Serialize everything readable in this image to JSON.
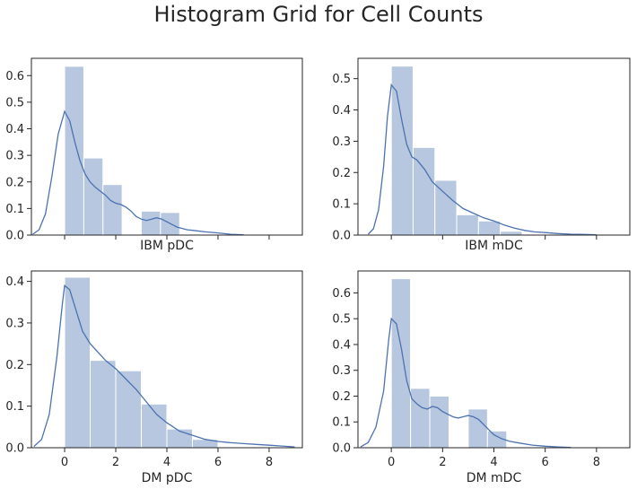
{
  "title": "Histogram Grid for Cell Counts",
  "colors": {
    "bar": "#4c72b0",
    "line": "#4c72b0",
    "axes": "#262626"
  },
  "chart_data": [
    {
      "type": "bar",
      "title": "",
      "xlabel": "IBM pDC",
      "ylabel": "",
      "xlim": [
        -1.3,
        9.3
      ],
      "ylim": [
        0,
        0.665
      ],
      "xticks": [
        0,
        2,
        4,
        6,
        8
      ],
      "xtick_labels_shown": false,
      "yticks": [
        0.0,
        0.1,
        0.2,
        0.3,
        0.4,
        0.5,
        0.6
      ],
      "ytick_labels": [
        "0.0",
        "0.1",
        "0.2",
        "0.3",
        "0.4",
        "0.5",
        "0.6"
      ],
      "bins": [
        {
          "x0": 0.0,
          "x1": 0.75,
          "value": 0.635
        },
        {
          "x0": 0.75,
          "x1": 1.5,
          "value": 0.29
        },
        {
          "x0": 1.5,
          "x1": 2.25,
          "value": 0.19
        },
        {
          "x0": 2.25,
          "x1": 3.0,
          "value": 0.0
        },
        {
          "x0": 3.0,
          "x1": 3.75,
          "value": 0.09
        },
        {
          "x0": 3.75,
          "x1": 4.5,
          "value": 0.085
        }
      ],
      "kde": {
        "x": [
          -1.25,
          -1.0,
          -0.75,
          -0.5,
          -0.25,
          0.0,
          0.2,
          0.4,
          0.6,
          0.8,
          1.0,
          1.2,
          1.4,
          1.6,
          1.8,
          2.0,
          2.2,
          2.4,
          2.6,
          2.8,
          3.0,
          3.2,
          3.4,
          3.6,
          3.8,
          4.0,
          4.2,
          4.4,
          4.6,
          4.8,
          5.0,
          5.5,
          6.0,
          6.5,
          7.0
        ],
        "y": [
          0.003,
          0.02,
          0.08,
          0.22,
          0.38,
          0.465,
          0.43,
          0.35,
          0.28,
          0.23,
          0.2,
          0.18,
          0.165,
          0.15,
          0.13,
          0.12,
          0.115,
          0.105,
          0.09,
          0.07,
          0.06,
          0.055,
          0.06,
          0.065,
          0.06,
          0.05,
          0.04,
          0.03,
          0.025,
          0.02,
          0.018,
          0.012,
          0.008,
          0.003,
          0.001
        ]
      }
    },
    {
      "type": "bar",
      "title": "",
      "xlabel": "IBM mDC",
      "ylabel": "",
      "xlim": [
        -1.3,
        9.3
      ],
      "ylim": [
        0,
        0.565
      ],
      "xticks": [
        0,
        2,
        4,
        6,
        8
      ],
      "xtick_labels_shown": false,
      "yticks": [
        0.0,
        0.1,
        0.2,
        0.3,
        0.4,
        0.5
      ],
      "ytick_labels": [
        "0.0",
        "0.1",
        "0.2",
        "0.3",
        "0.4",
        "0.5"
      ],
      "bins": [
        {
          "x0": 0.0,
          "x1": 0.85,
          "value": 0.54
        },
        {
          "x0": 0.85,
          "x1": 1.7,
          "value": 0.28
        },
        {
          "x0": 1.7,
          "x1": 2.55,
          "value": 0.175
        },
        {
          "x0": 2.55,
          "x1": 3.4,
          "value": 0.065
        },
        {
          "x0": 3.4,
          "x1": 4.25,
          "value": 0.045
        },
        {
          "x0": 4.25,
          "x1": 5.1,
          "value": 0.012
        }
      ],
      "kde": {
        "x": [
          -0.9,
          -0.7,
          -0.5,
          -0.3,
          -0.15,
          0.0,
          0.2,
          0.4,
          0.6,
          0.8,
          1.0,
          1.3,
          1.6,
          2.0,
          2.4,
          2.8,
          3.2,
          3.6,
          4.0,
          4.4,
          4.8,
          5.2,
          5.6,
          6.0,
          6.5,
          7.0,
          7.5,
          8.0
        ],
        "y": [
          0.003,
          0.02,
          0.08,
          0.22,
          0.38,
          0.48,
          0.46,
          0.37,
          0.29,
          0.25,
          0.24,
          0.21,
          0.17,
          0.14,
          0.11,
          0.085,
          0.07,
          0.055,
          0.045,
          0.032,
          0.022,
          0.015,
          0.01,
          0.008,
          0.005,
          0.003,
          0.002,
          0.001
        ]
      }
    },
    {
      "type": "bar",
      "title": "",
      "xlabel": "DM pDC",
      "ylabel": "",
      "xlim": [
        -1.3,
        9.3
      ],
      "ylim": [
        0,
        0.425
      ],
      "xticks": [
        0,
        2,
        4,
        6,
        8
      ],
      "xtick_labels": [
        "0",
        "2",
        "4",
        "6",
        "8"
      ],
      "xtick_labels_shown": true,
      "yticks": [
        0.0,
        0.1,
        0.2,
        0.3,
        0.4
      ],
      "ytick_labels": [
        "0.0",
        "0.1",
        "0.2",
        "0.3",
        "0.4"
      ],
      "bins": [
        {
          "x0": 0.0,
          "x1": 1.0,
          "value": 0.41
        },
        {
          "x0": 1.0,
          "x1": 2.0,
          "value": 0.21
        },
        {
          "x0": 2.0,
          "x1": 3.0,
          "value": 0.185
        },
        {
          "x0": 3.0,
          "x1": 4.0,
          "value": 0.105
        },
        {
          "x0": 4.0,
          "x1": 5.0,
          "value": 0.045
        },
        {
          "x0": 5.0,
          "x1": 6.0,
          "value": 0.02
        }
      ],
      "kde": {
        "x": [
          -1.2,
          -0.9,
          -0.6,
          -0.3,
          -0.1,
          0.0,
          0.2,
          0.4,
          0.7,
          1.0,
          1.3,
          1.6,
          2.0,
          2.4,
          2.8,
          3.2,
          3.6,
          4.0,
          4.5,
          5.0,
          5.5,
          6.0,
          6.5,
          7.0,
          7.5,
          8.0,
          8.5,
          9.0
        ],
        "y": [
          0.003,
          0.02,
          0.08,
          0.22,
          0.34,
          0.39,
          0.38,
          0.34,
          0.28,
          0.25,
          0.23,
          0.21,
          0.19,
          0.165,
          0.14,
          0.11,
          0.08,
          0.06,
          0.04,
          0.03,
          0.02,
          0.015,
          0.012,
          0.01,
          0.008,
          0.006,
          0.004,
          0.002
        ]
      }
    },
    {
      "type": "bar",
      "title": "",
      "xlabel": "DM mDC",
      "ylabel": "",
      "xlim": [
        -1.3,
        9.3
      ],
      "ylim": [
        0,
        0.685
      ],
      "xticks": [
        0,
        2,
        4,
        6,
        8
      ],
      "xtick_labels": [
        "0",
        "2",
        "4",
        "6",
        "8"
      ],
      "xtick_labels_shown": true,
      "yticks": [
        0.0,
        0.1,
        0.2,
        0.3,
        0.4,
        0.5,
        0.6
      ],
      "ytick_labels": [
        "0.0",
        "0.1",
        "0.2",
        "0.3",
        "0.4",
        "0.5",
        "0.6"
      ],
      "bins": [
        {
          "x0": 0.0,
          "x1": 0.75,
          "value": 0.655
        },
        {
          "x0": 0.75,
          "x1": 1.5,
          "value": 0.23
        },
        {
          "x0": 1.5,
          "x1": 2.25,
          "value": 0.2
        },
        {
          "x0": 2.25,
          "x1": 3.0,
          "value": 0.0
        },
        {
          "x0": 3.0,
          "x1": 3.75,
          "value": 0.15
        },
        {
          "x0": 3.75,
          "x1": 4.5,
          "value": 0.065
        }
      ],
      "kde": {
        "x": [
          -1.2,
          -0.9,
          -0.6,
          -0.3,
          -0.1,
          0.0,
          0.2,
          0.4,
          0.6,
          0.8,
          1.0,
          1.2,
          1.4,
          1.6,
          1.8,
          2.0,
          2.2,
          2.4,
          2.6,
          2.8,
          3.0,
          3.2,
          3.4,
          3.6,
          3.8,
          4.0,
          4.3,
          4.6,
          5.0,
          5.5,
          6.0,
          6.5,
          7.0
        ],
        "y": [
          0.003,
          0.02,
          0.08,
          0.22,
          0.42,
          0.5,
          0.48,
          0.38,
          0.26,
          0.19,
          0.17,
          0.155,
          0.15,
          0.16,
          0.155,
          0.14,
          0.13,
          0.12,
          0.115,
          0.12,
          0.125,
          0.12,
          0.11,
          0.09,
          0.07,
          0.05,
          0.035,
          0.025,
          0.018,
          0.01,
          0.006,
          0.003,
          0.001
        ]
      }
    }
  ]
}
